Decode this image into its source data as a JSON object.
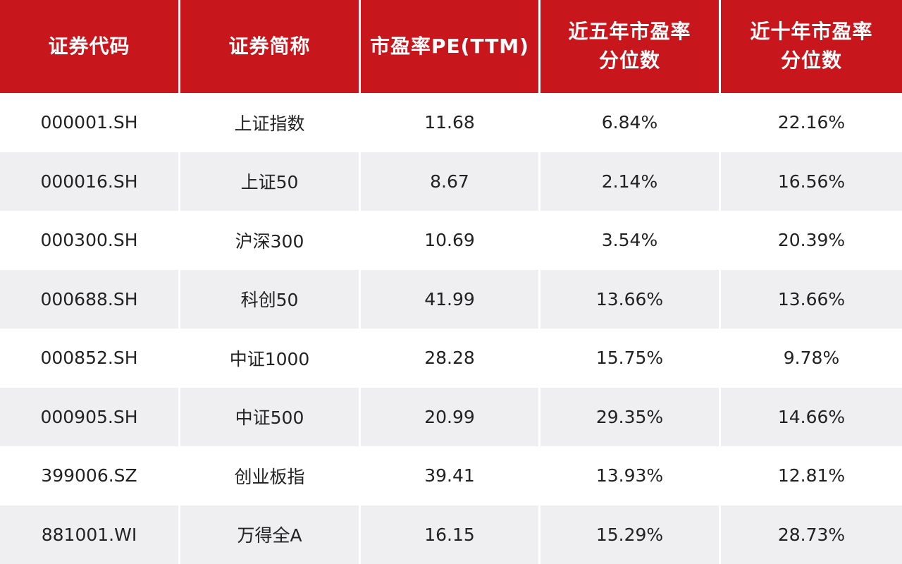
{
  "header": {
    "col1": "证券代码",
    "col2": "证券简称",
    "col3": "市盈率PE(TTM)",
    "col4": "近五年市盈率\n分位数",
    "col5": "近十年市盈率\n分位数"
  },
  "rows": [
    {
      "code": "000001.SH",
      "name": "上证指数",
      "pe": "11.68",
      "p5": "6.84%",
      "p10": "22.16%"
    },
    {
      "code": "000016.SH",
      "name": "上证50",
      "pe": "8.67",
      "p5": "2.14%",
      "p10": "16.56%"
    },
    {
      "code": "000300.SH",
      "name": "沪深300",
      "pe": "10.69",
      "p5": "3.54%",
      "p10": "20.39%"
    },
    {
      "code": "000688.SH",
      "name": "科创50",
      "pe": "41.99",
      "p5": "13.66%",
      "p10": "13.66%"
    },
    {
      "code": "000852.SH",
      "name": "中证1000",
      "pe": "28.28",
      "p5": "15.75%",
      "p10": "9.78%"
    },
    {
      "code": "000905.SH",
      "name": "中证500",
      "pe": "20.99",
      "p5": "29.35%",
      "p10": "14.66%"
    },
    {
      "code": "399006.SZ",
      "name": "创业板指",
      "pe": "39.41",
      "p5": "13.93%",
      "p10": "12.81%"
    },
    {
      "code": "881001.WI",
      "name": "万得全A",
      "pe": "16.15",
      "p5": "15.29%",
      "p10": "28.73%"
    }
  ],
  "colors": {
    "header_bg": "#c8161d",
    "header_text": "#ffffff",
    "row_alt_bg": "#efeff1",
    "row_bg": "#ffffff"
  }
}
